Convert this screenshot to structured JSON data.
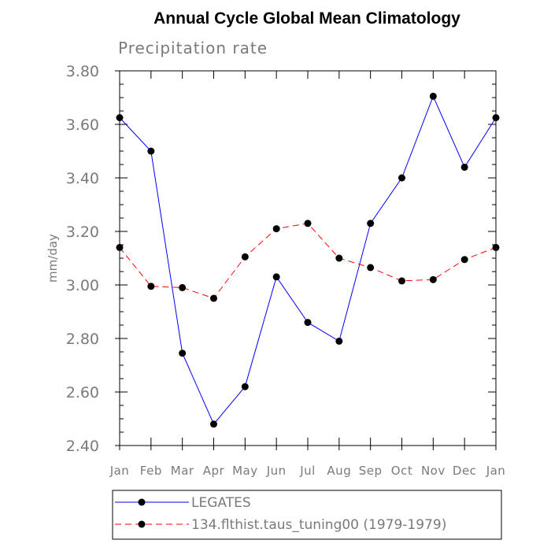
{
  "chart_data": {
    "type": "line",
    "title": "Annual Cycle Global Mean Climatology",
    "subtitle": "Precipitation rate",
    "xlabel": "",
    "ylabel": "mm/day",
    "categories": [
      "Jan",
      "Feb",
      "Mar",
      "Apr",
      "May",
      "Jun",
      "Jul",
      "Aug",
      "Sep",
      "Oct",
      "Nov",
      "Dec",
      "Jan"
    ],
    "ylim": [
      2.4,
      3.8
    ],
    "yticks": [
      "2.40",
      "2.60",
      "2.80",
      "3.00",
      "3.20",
      "3.40",
      "3.60",
      "3.80"
    ],
    "grid": false,
    "legend_position": "bottom",
    "series": [
      {
        "name": "LEGATES",
        "color": "#0000ff",
        "dash": "solid",
        "values": [
          3.625,
          3.5,
          2.745,
          2.48,
          2.62,
          3.03,
          2.86,
          2.79,
          3.23,
          3.4,
          3.705,
          3.44,
          3.625
        ]
      },
      {
        "name": "134.flthist.taus_tuning00 (1979-1979)",
        "color": "#ff0000",
        "dash": "dashed",
        "values": [
          3.14,
          2.995,
          2.99,
          2.95,
          3.105,
          3.21,
          3.23,
          3.1,
          3.065,
          3.015,
          3.02,
          3.095,
          3.14
        ]
      }
    ]
  }
}
